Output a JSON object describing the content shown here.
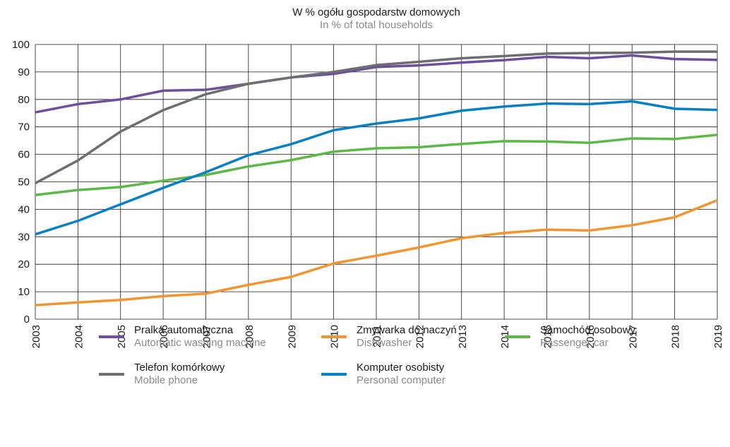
{
  "chart_data": {
    "type": "line",
    "title": "W % ogółu gospodarstw domowych",
    "subtitle": "In % of total households",
    "categories": [
      "2003",
      "2004",
      "2005",
      "2006",
      "2007",
      "2008",
      "2009",
      "2010",
      "2011",
      "2012",
      "2013",
      "2014",
      "2015",
      "2016",
      "2017",
      "2018",
      "2019"
    ],
    "ylim": [
      0,
      100
    ],
    "yticks": [
      0,
      10,
      20,
      30,
      40,
      50,
      60,
      70,
      80,
      90,
      100
    ],
    "grid": true,
    "legend": "bottom",
    "series": [
      {
        "name": "Pralka automatyczna",
        "name_en": "Automatic washing machine",
        "color": "#6f4ea0",
        "values": [
          75.3,
          78.3,
          80,
          83.2,
          83.5,
          85.7,
          88,
          89.3,
          91.8,
          92.4,
          93.4,
          94.3,
          95.5,
          95,
          96,
          94.7,
          94.4
        ]
      },
      {
        "name": "Zmywarka do naczyń",
        "name_en": "Dishwasher",
        "color": "#f29530",
        "values": [
          5.1,
          6.1,
          7,
          8.4,
          9.3,
          12.5,
          15.4,
          20.3,
          23.1,
          26.1,
          29.5,
          31.4,
          32.6,
          32.3,
          34.2,
          37.1,
          43.3
        ]
      },
      {
        "name": "Samochód osobowy",
        "name_en": "Passenger car",
        "color": "#5cb947",
        "values": [
          45.2,
          47,
          48.1,
          50.4,
          52.5,
          55.6,
          57.9,
          61,
          62.2,
          62.6,
          63.8,
          64.8,
          64.7,
          64.2,
          65.8,
          65.6,
          67.1
        ]
      },
      {
        "name": "Telefon komórkowy",
        "name_en": "Mobile phone",
        "color": "#6d6e71",
        "values": [
          49.5,
          57.8,
          68.3,
          76.1,
          81.9,
          85.7,
          88,
          90,
          92.5,
          93.7,
          95,
          95.8,
          96.7,
          96.9,
          97,
          97.4,
          97.4
        ]
      },
      {
        "name": "Komputer osobisty",
        "name_en": "Personal computer",
        "color": "#0a80c4",
        "values": [
          30.9,
          35.8,
          41.8,
          47.8,
          53.5,
          59.7,
          63.7,
          68.8,
          71.2,
          73.1,
          75.9,
          77.4,
          78.5,
          78.3,
          79.3,
          76.6,
          76.2
        ]
      }
    ]
  }
}
